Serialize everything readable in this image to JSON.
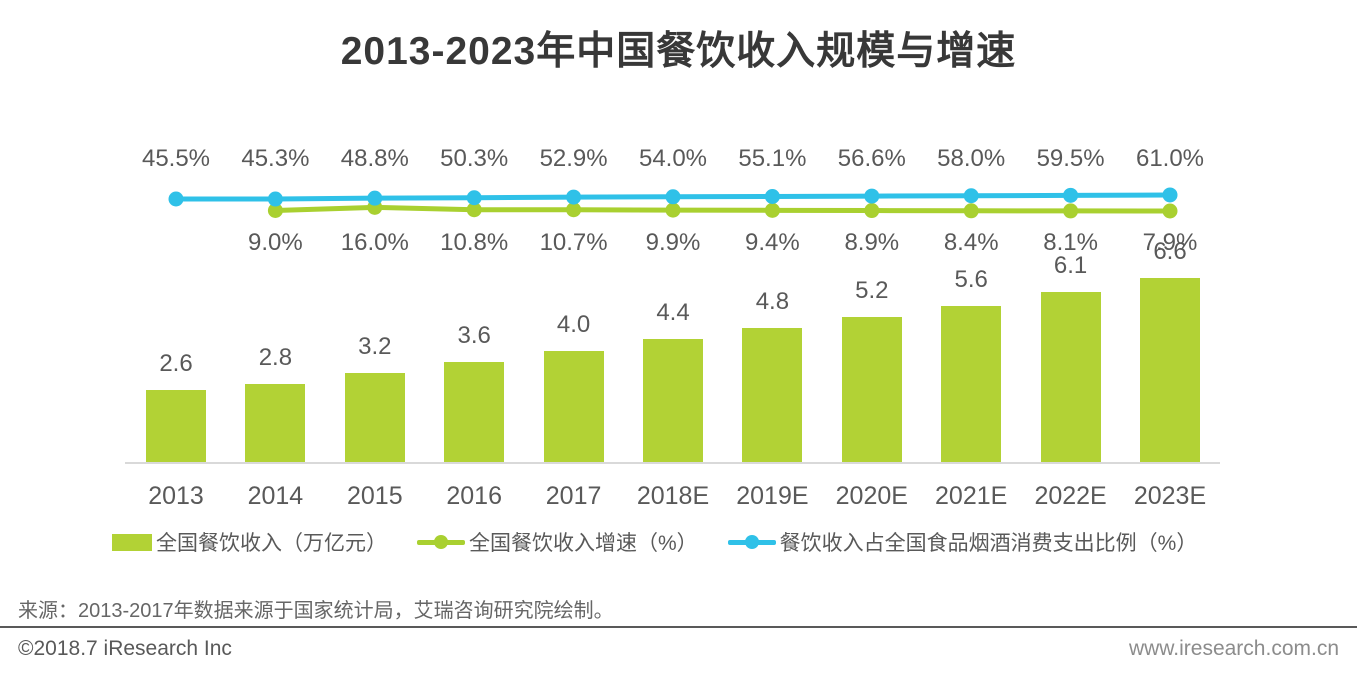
{
  "title": "2013-2023年中国餐饮收入规模与增速",
  "chart_data": {
    "type": "bar",
    "categories": [
      "2013",
      "2014",
      "2015",
      "2016",
      "2017",
      "2018E",
      "2019E",
      "2020E",
      "2021E",
      "2022E",
      "2023E"
    ],
    "series": [
      {
        "name": "全国餐饮收入（万亿元）",
        "type": "bar",
        "color": "#b2d235",
        "values": [
          2.6,
          2.8,
          3.2,
          3.6,
          4.0,
          4.4,
          4.8,
          5.2,
          5.6,
          6.1,
          6.6
        ],
        "labels": [
          "2.6",
          "2.8",
          "3.2",
          "3.6",
          "4.0",
          "4.4",
          "4.8",
          "5.2",
          "5.6",
          "6.1",
          "6.6"
        ]
      },
      {
        "name": "全国餐饮收入增速（%）",
        "type": "line",
        "color": "#a9d030",
        "values": [
          null,
          9.0,
          16.0,
          10.8,
          10.7,
          9.9,
          9.4,
          8.9,
          8.4,
          8.1,
          7.9
        ],
        "labels": [
          "",
          "9.0%",
          "16.0%",
          "10.8%",
          "10.7%",
          "9.9%",
          "9.4%",
          "8.9%",
          "8.4%",
          "8.1%",
          "7.9%"
        ]
      },
      {
        "name": "餐饮收入占全国食品烟酒消费支出比例（%）",
        "type": "line",
        "color": "#2fc1e8",
        "values": [
          45.5,
          45.3,
          48.8,
          50.3,
          52.9,
          54.0,
          55.1,
          56.6,
          58.0,
          59.5,
          61.0
        ],
        "labels": [
          "45.5%",
          "45.3%",
          "48.8%",
          "50.3%",
          "52.9%",
          "54.0%",
          "55.1%",
          "56.6%",
          "58.0%",
          "59.5%",
          "61.0%"
        ]
      }
    ],
    "legend_position": "bottom",
    "grid": false,
    "ylim_bar": [
      0,
      7
    ],
    "bar_unit": "万亿元"
  },
  "legend": {
    "items": [
      {
        "label": "全国餐饮收入（万亿元）",
        "swatch": "bar-swatch",
        "color": "#b2d235"
      },
      {
        "label": "全国餐饮收入增速（%）",
        "swatch": "line-swatch",
        "color": "#a9d030"
      },
      {
        "label": "餐饮收入占全国食品烟酒消费支出比例（%）",
        "swatch": "line-swatch",
        "color": "#2fc1e8"
      }
    ]
  },
  "source": "来源：2013-2017年数据来源于国家统计局，艾瑞咨询研究院绘制。",
  "footer": {
    "copyright": "©2018.7 iResearch Inc",
    "website": "www.iresearch.com.cn"
  }
}
